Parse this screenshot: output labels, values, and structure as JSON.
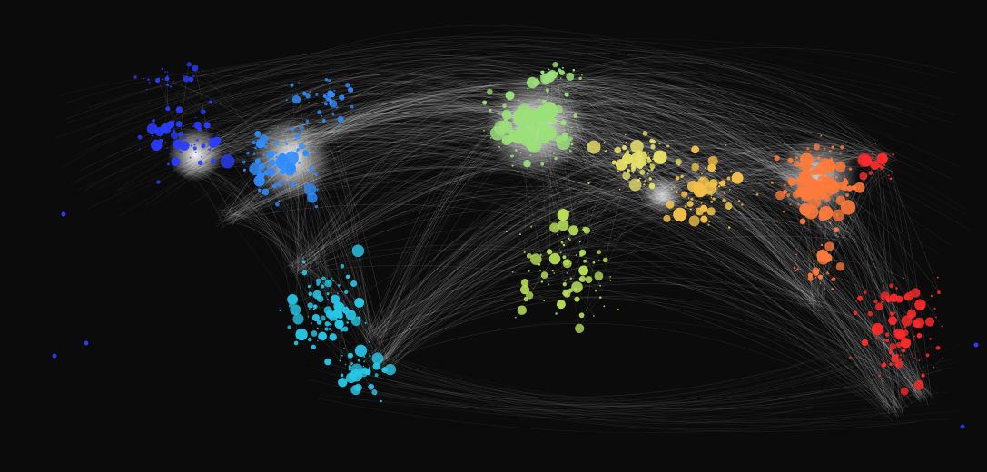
{
  "map": {
    "background": "#0b0b0b",
    "route_color": "#ffffff",
    "region_colors": {
      "north_america_west": "#2a3cff",
      "north_america_east": "#2f8cff",
      "south_america": "#27c7e6",
      "europe": "#9be07a",
      "africa": "#b9e05a",
      "middle_east": "#e6e06a",
      "south_asia": "#f2c04a",
      "east_asia": "#ff7a3a",
      "oceania": "#ff2a2a"
    },
    "regions": [
      "north_america_west",
      "north_america_east",
      "south_america",
      "europe",
      "africa",
      "middle_east",
      "south_asia",
      "east_asia",
      "oceania"
    ]
  }
}
